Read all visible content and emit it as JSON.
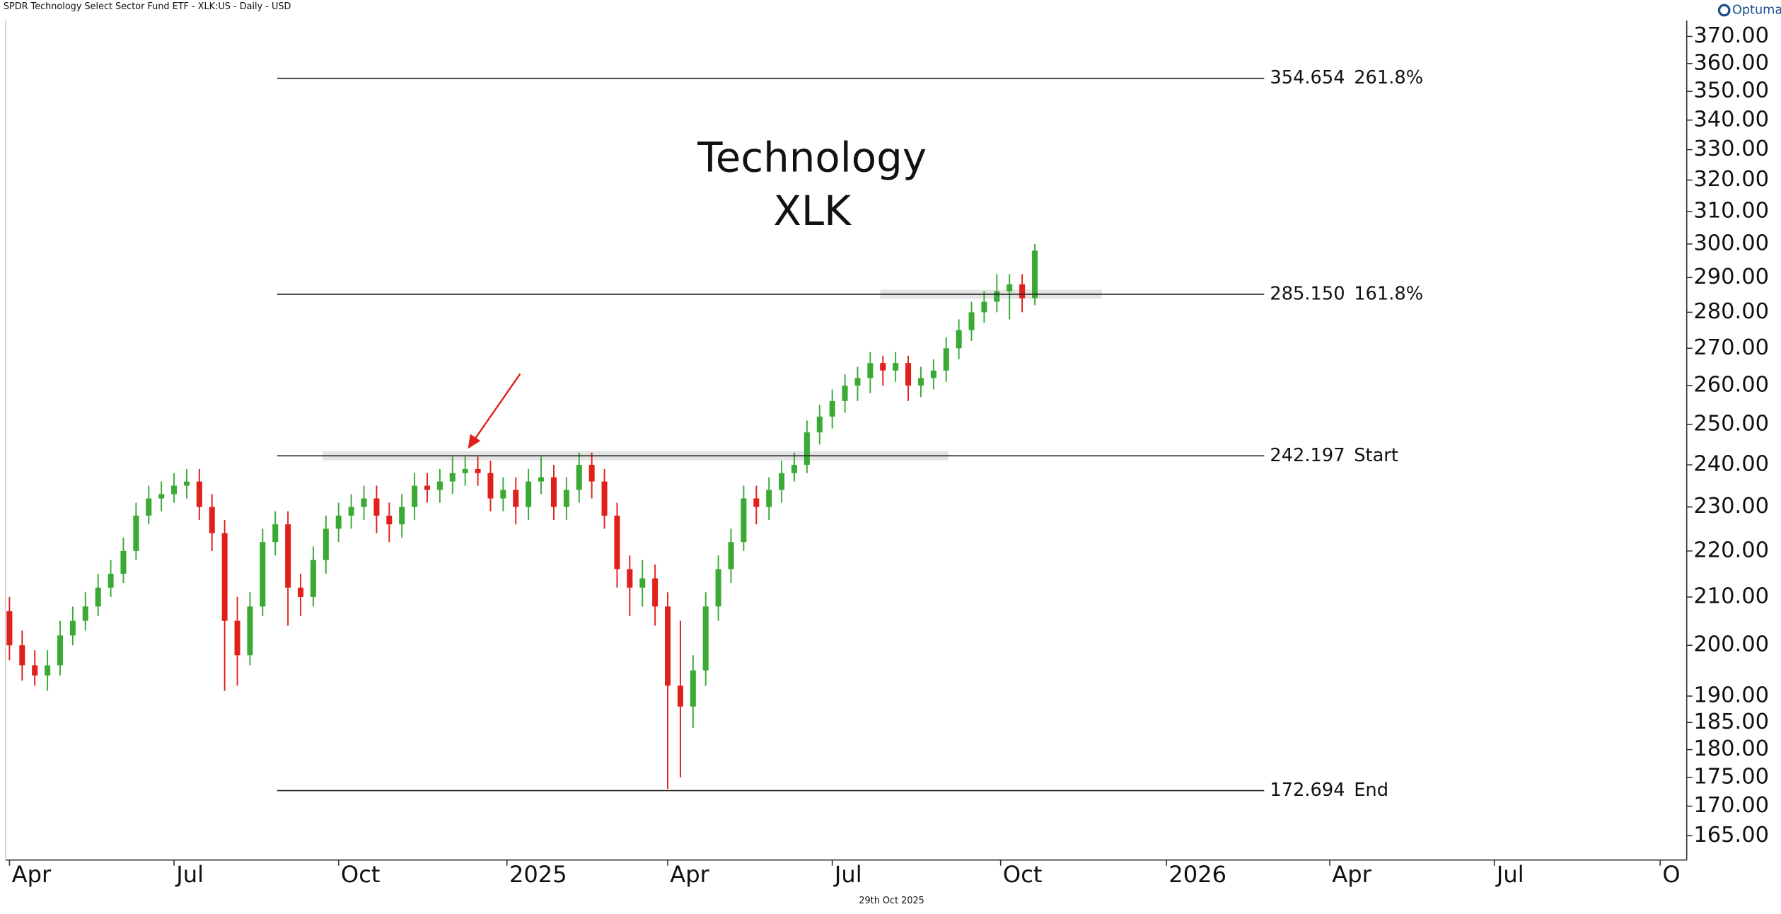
{
  "header": "SPDR Technology Select Sector Fund ETF - XLK:US - Daily - USD",
  "footer": "29th Oct 2025",
  "logo": "Optuma",
  "chart_data": {
    "type": "candlestick",
    "title": "Technology",
    "subtitle": "XLK",
    "log_scale": true,
    "up_color": "#3aaa35",
    "down_color": "#e0201b",
    "x": [
      0,
      1,
      2,
      3,
      4,
      5,
      6,
      7,
      8,
      9,
      10,
      11,
      12,
      13,
      14,
      15,
      16,
      17,
      18,
      19,
      20,
      21,
      22,
      23,
      24,
      25,
      26,
      27,
      28,
      29,
      30,
      31,
      32,
      33,
      34,
      35,
      36,
      37,
      38,
      39,
      40,
      41,
      42,
      43,
      44,
      45,
      46,
      47,
      48,
      49,
      50,
      51,
      52,
      53,
      54,
      55,
      56,
      57,
      58,
      59,
      60,
      61,
      62,
      63,
      64,
      65,
      66,
      67,
      68,
      69,
      70,
      71,
      72,
      73,
      74,
      75,
      76,
      77,
      78,
      79,
      80,
      81
    ],
    "open": [
      207,
      200,
      196,
      194,
      196,
      202,
      205,
      208,
      212,
      215,
      220,
      228,
      232,
      233,
      235,
      236,
      230,
      224,
      205,
      198,
      208,
      222,
      226,
      212,
      210,
      218,
      225,
      228,
      230,
      232,
      228,
      226,
      230,
      235,
      234,
      236,
      238,
      239,
      238,
      232,
      234,
      230,
      236,
      237,
      230,
      234,
      240,
      236,
      228,
      216,
      212,
      214,
      208,
      192,
      188,
      195,
      208,
      216,
      222,
      232,
      230,
      234,
      238,
      240,
      248,
      252,
      256,
      260,
      262,
      266,
      264,
      266,
      260,
      262,
      264,
      270,
      275,
      280,
      283,
      286,
      288,
      284
    ],
    "high": [
      210,
      203,
      199,
      199,
      205,
      208,
      211,
      215,
      218,
      223,
      231,
      235,
      236,
      238,
      239,
      239,
      233,
      227,
      210,
      211,
      225,
      229,
      229,
      215,
      221,
      228,
      231,
      233,
      235,
      235,
      231,
      233,
      238,
      238,
      239,
      242,
      242,
      242,
      241,
      237,
      237,
      239,
      242,
      240,
      237,
      243,
      243,
      239,
      231,
      219,
      218,
      217,
      211,
      205,
      198,
      211,
      219,
      225,
      235,
      235,
      237,
      241,
      243,
      251,
      255,
      259,
      263,
      265,
      269,
      268,
      269,
      268,
      265,
      267,
      273,
      278,
      283,
      286,
      291,
      291,
      291,
      300
    ],
    "low": [
      197,
      193,
      192,
      191,
      194,
      200,
      203,
      206,
      210,
      213,
      218,
      226,
      229,
      231,
      232,
      227,
      220,
      191,
      192,
      196,
      206,
      219,
      204,
      206,
      208,
      215,
      222,
      225,
      227,
      224,
      222,
      223,
      227,
      231,
      231,
      233,
      235,
      235,
      229,
      229,
      226,
      227,
      233,
      227,
      227,
      231,
      232,
      225,
      212,
      206,
      208,
      204,
      173,
      175,
      184,
      192,
      205,
      213,
      220,
      226,
      227,
      231,
      236,
      238,
      245,
      249,
      253,
      256,
      258,
      260,
      261,
      256,
      257,
      259,
      261,
      267,
      272,
      277,
      280,
      278,
      280,
      282
    ],
    "close": [
      200,
      196,
      194,
      196,
      202,
      205,
      208,
      212,
      215,
      220,
      228,
      232,
      233,
      235,
      236,
      230,
      224,
      205,
      198,
      208,
      222,
      226,
      212,
      210,
      218,
      225,
      228,
      230,
      232,
      228,
      226,
      230,
      235,
      234,
      236,
      238,
      239,
      238,
      232,
      234,
      230,
      236,
      237,
      230,
      234,
      240,
      236,
      228,
      216,
      212,
      214,
      208,
      192,
      188,
      195,
      208,
      216,
      222,
      232,
      230,
      234,
      238,
      240,
      248,
      252,
      256,
      260,
      262,
      266,
      264,
      266,
      260,
      262,
      264,
      270,
      275,
      280,
      283,
      286,
      288,
      284,
      298
    ],
    "xlim": [
      -0.3,
      132.5
    ],
    "xticks": [
      {
        "value": 0,
        "label": "Apr"
      },
      {
        "value": 13,
        "label": "Jul"
      },
      {
        "value": 26,
        "label": "Oct"
      },
      {
        "value": 39.3,
        "label": "2025"
      },
      {
        "value": 52,
        "label": "Apr"
      },
      {
        "value": 65,
        "label": "Jul"
      },
      {
        "value": 78.3,
        "label": "Oct"
      },
      {
        "value": 91.4,
        "label": "2026"
      },
      {
        "value": 104.3,
        "label": "Apr"
      },
      {
        "value": 117.3,
        "label": "Jul"
      },
      {
        "value": 130.4,
        "label": "O"
      }
    ],
    "ylim": [
      161,
      376
    ],
    "yticks": [
      {
        "value": 165,
        "label": "165.00"
      },
      {
        "value": 170,
        "label": "170.00"
      },
      {
        "value": 175,
        "label": "175.00"
      },
      {
        "value": 180,
        "label": "180.00"
      },
      {
        "value": 185,
        "label": "185.00"
      },
      {
        "value": 190,
        "label": "190.00"
      },
      {
        "value": 200,
        "label": "200.00"
      },
      {
        "value": 210,
        "label": "210.00"
      },
      {
        "value": 220,
        "label": "220.00"
      },
      {
        "value": 230,
        "label": "230.00"
      },
      {
        "value": 240,
        "label": "240.00"
      },
      {
        "value": 250,
        "label": "250.00"
      },
      {
        "value": 260,
        "label": "260.00"
      },
      {
        "value": 270,
        "label": "270.00"
      },
      {
        "value": 280,
        "label": "280.00"
      },
      {
        "value": 290,
        "label": "290.00"
      },
      {
        "value": 300,
        "label": "300.00"
      },
      {
        "value": 310,
        "label": "310.00"
      },
      {
        "value": 320,
        "label": "320.00"
      },
      {
        "value": 330,
        "label": "330.00"
      },
      {
        "value": 340,
        "label": "340.00"
      },
      {
        "value": 350,
        "label": "350.00"
      },
      {
        "value": 360,
        "label": "360.00"
      },
      {
        "value": 370,
        "label": "370.00"
      }
    ],
    "levels": [
      {
        "price": 354.654,
        "name": "261.8%"
      },
      {
        "price": {
          "value": 285.15,
          "label": "285.150"
        },
        "name": "161.8%",
        "highlight": true
      },
      {
        "price": 242.197,
        "name": "Start",
        "highlight": true
      },
      {
        "price": 172.694,
        "name": "End"
      }
    ]
  }
}
